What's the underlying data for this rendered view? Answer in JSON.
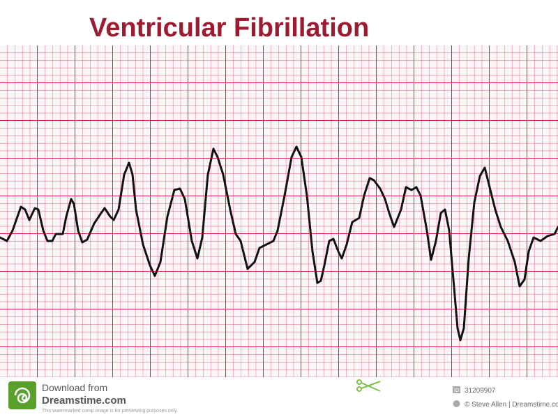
{
  "header": {
    "title": "Ventricular Fibrillation"
  },
  "footer": {
    "download": "Download from",
    "site": "Dreamstime.com",
    "notice": "This watermarked comp image is for previewing purposes only.",
    "id_label": "ID",
    "id": "31209907",
    "credit": "© Steve Allen | Dreamstime.com"
  }
}
